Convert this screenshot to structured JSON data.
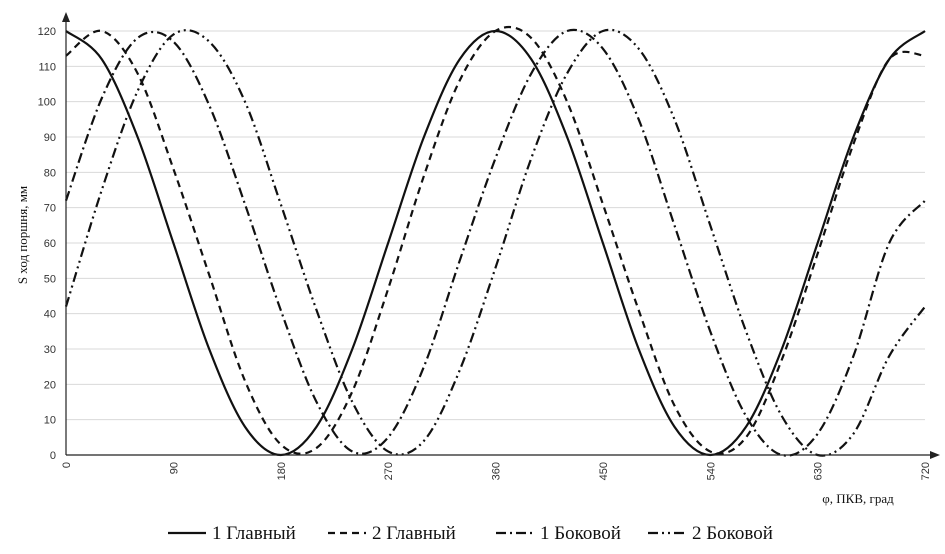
{
  "chart_data": {
    "type": "line",
    "title": "",
    "xlabel": "φ, ПКВ, град",
    "ylabel": "S ход поршня, мм",
    "xlim": [
      0,
      720
    ],
    "ylim": [
      0,
      120
    ],
    "x_ticks": [
      "0",
      "90",
      "180",
      "270",
      "360",
      "450",
      "540",
      "630",
      "720"
    ],
    "y_ticks": [
      "0",
      "10",
      "20",
      "30",
      "40",
      "50",
      "60",
      "70",
      "80",
      "90",
      "100",
      "110",
      "120"
    ],
    "grid": "horizontal",
    "legend_position": "bottom",
    "x": [
      0,
      30,
      60,
      90,
      120,
      150,
      180,
      210,
      240,
      270,
      300,
      330,
      360,
      390,
      420,
      450,
      480,
      510,
      540,
      570,
      600,
      630,
      660,
      690,
      720
    ],
    "series": [
      {
        "name": "1 Главный",
        "dash": "solid",
        "values": [
          120,
          112,
          90,
          60,
          30,
          8,
          0,
          8,
          30,
          60,
          90,
          112,
          120,
          112,
          90,
          60,
          30,
          8,
          0,
          8,
          30,
          60,
          90,
          112,
          120
        ]
      },
      {
        "name": "2 Главный",
        "dash": "dash",
        "values": [
          113,
          120,
          108,
          81,
          51,
          21,
          3,
          2,
          18,
          47,
          79,
          106,
          120,
          118,
          100,
          71,
          41,
          14,
          1,
          5,
          27,
          57,
          88,
          112,
          113
        ]
      },
      {
        "name": "1 Боковой",
        "dash": "dashdot",
        "values": [
          72,
          101,
          118,
          117,
          99,
          71,
          41,
          15,
          1,
          5,
          25,
          55,
          84,
          108,
          120,
          115,
          95,
          65,
          35,
          11,
          0,
          6,
          28,
          60,
          72
        ]
      },
      {
        "name": "2  Боковой",
        "dash": "dashdotdot",
        "values": [
          42,
          75,
          103,
          119,
          117,
          100,
          71,
          41,
          15,
          1,
          4,
          24,
          53,
          84,
          108,
          120,
          115,
          95,
          65,
          35,
          11,
          0,
          6,
          28,
          42
        ]
      }
    ]
  }
}
